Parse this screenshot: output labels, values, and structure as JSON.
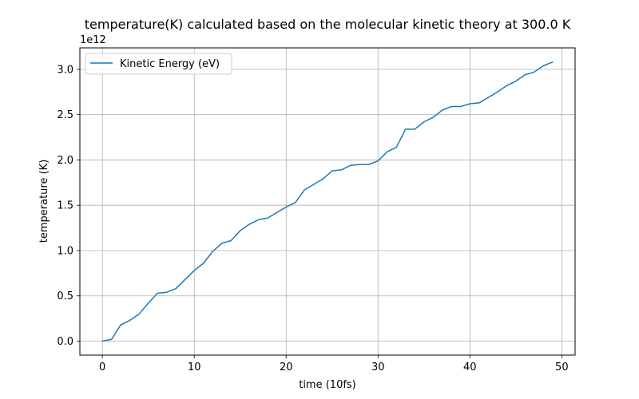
{
  "chart_data": {
    "type": "line",
    "title": "temperature(K) calculated based on the molecular kinetic theory at 300.0 K",
    "xlabel": "time (10fs)",
    "ylabel": "temperature (K)",
    "y_offset_label": "1e12",
    "xlim": [
      -2.45,
      51.45
    ],
    "ylim": [
      -0.154,
      3.237
    ],
    "xticks": [
      0,
      10,
      20,
      30,
      40,
      50
    ],
    "xtick_labels": [
      "0",
      "10",
      "20",
      "30",
      "40",
      "50"
    ],
    "yticks": [
      0.0,
      0.5,
      1.0,
      1.5,
      2.0,
      2.5,
      3.0
    ],
    "ytick_labels": [
      "0.0",
      "0.5",
      "1.0",
      "1.5",
      "2.0",
      "2.5",
      "3.0"
    ],
    "grid": true,
    "legend_position": "top-left",
    "series": [
      {
        "name": "Kinetic Energy (eV)",
        "color": "#1f77b4",
        "x": [
          0,
          1,
          2,
          3,
          4,
          5,
          6,
          7,
          8,
          9,
          10,
          11,
          12,
          13,
          14,
          15,
          16,
          17,
          18,
          19,
          20,
          21,
          22,
          23,
          24,
          25,
          26,
          27,
          28,
          29,
          30,
          31,
          32,
          33,
          34,
          35,
          36,
          37,
          38,
          39,
          40,
          41,
          42,
          43,
          44,
          45,
          46,
          47,
          48,
          49
        ],
        "values": [
          0.0,
          0.02,
          0.18,
          0.23,
          0.3,
          0.42,
          0.53,
          0.54,
          0.58,
          0.68,
          0.78,
          0.86,
          0.99,
          1.08,
          1.11,
          1.22,
          1.29,
          1.34,
          1.36,
          1.42,
          1.48,
          1.53,
          1.67,
          1.73,
          1.79,
          1.88,
          1.89,
          1.94,
          1.95,
          1.95,
          1.99,
          2.09,
          2.14,
          2.34,
          2.34,
          2.42,
          2.47,
          2.55,
          2.59,
          2.59,
          2.62,
          2.63,
          2.69,
          2.75,
          2.82,
          2.87,
          2.94,
          2.97,
          3.04,
          3.08
        ]
      }
    ]
  }
}
